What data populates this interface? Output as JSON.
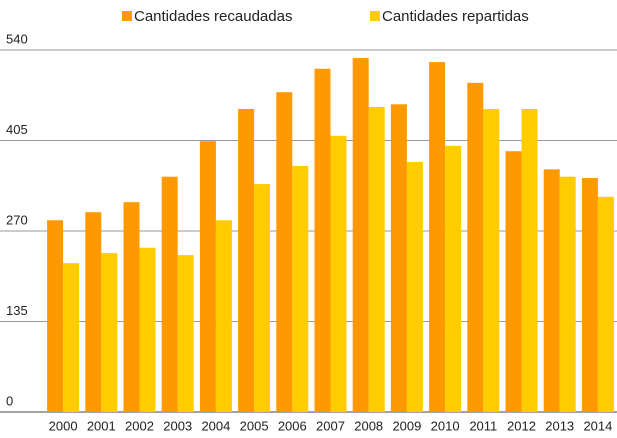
{
  "chart_data": {
    "type": "bar",
    "categories": [
      "2000",
      "2001",
      "2002",
      "2003",
      "2004",
      "2005",
      "2006",
      "2007",
      "2008",
      "2009",
      "2010",
      "2011",
      "2012",
      "2013",
      "2014"
    ],
    "series": [
      {
        "name": "Cantidades recaudadas",
        "color": "#ff9900",
        "values": [
          286,
          298,
          313,
          351,
          404,
          452,
          477,
          512,
          528,
          459,
          522,
          491,
          389,
          362,
          349
        ]
      },
      {
        "name": "Cantidades repartidas",
        "color": "#ffcc00",
        "values": [
          222,
          237,
          245,
          234,
          286,
          340,
          367,
          412,
          455,
          373,
          397,
          452,
          452,
          351,
          321
        ]
      }
    ],
    "ylim": [
      0,
      540
    ],
    "yticks": [
      0,
      135,
      270,
      405,
      540
    ],
    "grid": true,
    "legend": "top"
  }
}
